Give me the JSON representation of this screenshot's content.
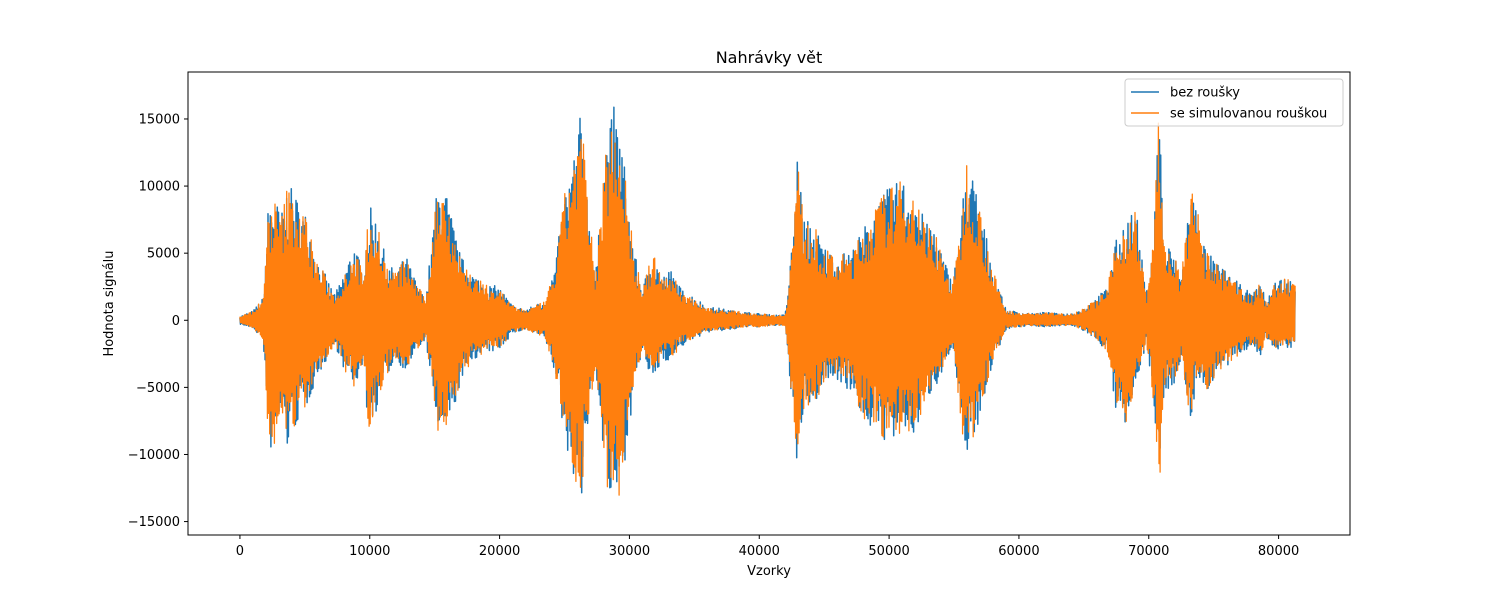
{
  "chart_data": {
    "type": "line",
    "title": "Nahrávky vět",
    "xlabel": "Vzorky",
    "ylabel": "Hodnota signálu",
    "xlim": [
      -4000,
      85500
    ],
    "ylim": [
      -16000,
      18500
    ],
    "xticks": [
      0,
      10000,
      20000,
      30000,
      40000,
      50000,
      60000,
      70000,
      80000
    ],
    "yticks": [
      -15000,
      -10000,
      -5000,
      0,
      5000,
      10000,
      15000
    ],
    "xtick_labels": [
      "0",
      "10000",
      "20000",
      "30000",
      "40000",
      "50000",
      "60000",
      "70000",
      "80000"
    ],
    "ytick_labels": [
      "−15000",
      "−10000",
      "−5000",
      "0",
      "5000",
      "10000",
      "15000"
    ],
    "grid": false,
    "legend_position": "top-right",
    "series": [
      {
        "name": "bez roušky",
        "color": "#1f77b4",
        "x": [
          0,
          1000,
          1800,
          2200,
          2600,
          3200,
          3600,
          4200,
          4700,
          5200,
          5800,
          6400,
          7200,
          7500,
          8100,
          8800,
          9400,
          10000,
          10600,
          11300,
          12000,
          12800,
          13500,
          14300,
          15200,
          15700,
          16300,
          17000,
          18000,
          19000,
          20000,
          21000,
          22000,
          23500,
          24300,
          25000,
          25600,
          26300,
          26800,
          27400,
          28200,
          28800,
          29400,
          29900,
          30400,
          31000,
          31800,
          32500,
          33200,
          34000,
          35000,
          36000,
          37000,
          38000,
          39000,
          40000,
          41000,
          42000,
          42600,
          42900,
          43400,
          44300,
          45200,
          46000,
          47200,
          48000,
          48800,
          49500,
          50200,
          51000,
          52000,
          52800,
          53500,
          54200,
          54900,
          55500,
          56000,
          56700,
          57300,
          58000,
          59000,
          60000,
          61000,
          62000,
          63000,
          64000,
          65000,
          66000,
          66800,
          67500,
          68200,
          69000,
          69800,
          70400,
          70800,
          71200,
          71800,
          72500,
          73200,
          73800,
          74400,
          75000,
          76000,
          77000,
          78000,
          78600,
          79000,
          79800,
          80500,
          81300
        ],
        "values": [
          300,
          700,
          1700,
          9000,
          9500,
          8000,
          10000,
          9700,
          8500,
          7900,
          5000,
          3800,
          2100,
          2300,
          3800,
          5900,
          3800,
          8500,
          7600,
          4200,
          3800,
          4800,
          3100,
          1500,
          10000,
          10500,
          7800,
          4800,
          3500,
          2700,
          2500,
          1100,
          800,
          1500,
          4200,
          9500,
          12000,
          15800,
          9000,
          3500,
          13500,
          16000,
          13800,
          9000,
          5000,
          2400,
          5200,
          3300,
          3800,
          2300,
          1800,
          1000,
          900,
          700,
          600,
          500,
          400,
          400,
          6500,
          13000,
          7800,
          7000,
          5300,
          4800,
          5400,
          6800,
          8600,
          9500,
          10000,
          10600,
          9900,
          7200,
          7200,
          4700,
          2800,
          7200,
          12500,
          9900,
          7200,
          3900,
          800,
          600,
          500,
          600,
          500,
          500,
          900,
          1700,
          2500,
          6000,
          7700,
          8500,
          1900,
          7100,
          17000,
          5700,
          5500,
          3200,
          10000,
          8400,
          5200,
          4600,
          3600,
          2700,
          1900,
          3000,
          1500,
          3000,
          3300,
          2800
        ],
        "neg_values": [
          -300,
          -600,
          -1500,
          -10000,
          -9500,
          -7500,
          -9800,
          -8200,
          -7200,
          -6400,
          -4600,
          -3500,
          -2000,
          -2300,
          -3900,
          -5200,
          -3400,
          -8700,
          -6400,
          -4200,
          -3000,
          -3800,
          -2500,
          -1400,
          -8300,
          -8700,
          -7600,
          -4600,
          -2900,
          -2500,
          -2200,
          -1000,
          -700,
          -1400,
          -4200,
          -9000,
          -11200,
          -13500,
          -8000,
          -3500,
          -12500,
          -14700,
          -12400,
          -8500,
          -5100,
          -2400,
          -5000,
          -3000,
          -3000,
          -2000,
          -1400,
          -900,
          -800,
          -700,
          -500,
          -500,
          -400,
          -400,
          -7000,
          -12700,
          -6800,
          -6200,
          -4600,
          -4400,
          -5500,
          -7400,
          -8300,
          -8900,
          -9300,
          -8600,
          -8700,
          -6000,
          -5200,
          -3500,
          -2100,
          -8000,
          -9800,
          -9000,
          -5800,
          -3200,
          -700,
          -500,
          -400,
          -500,
          -400,
          -400,
          -800,
          -1500,
          -2400,
          -7100,
          -8500,
          -4700,
          -1800,
          -6500,
          -12900,
          -5100,
          -5200,
          -3000,
          -7700,
          -4200,
          -5600,
          -4400,
          -3600,
          -2600,
          -1800,
          -2900,
          -1400,
          -2200,
          -2100,
          -2000
        ]
      },
      {
        "name": "se simulovanou rouškou",
        "color": "#ff7f0e",
        "x": [
          0,
          1000,
          1800,
          2200,
          2600,
          3200,
          3600,
          4200,
          4700,
          5200,
          5800,
          6400,
          7200,
          7500,
          8100,
          8800,
          9400,
          10000,
          10600,
          11300,
          12000,
          12800,
          13500,
          14300,
          15200,
          15700,
          16300,
          17000,
          18000,
          19000,
          20000,
          21000,
          22000,
          23500,
          24300,
          25000,
          25600,
          26300,
          26800,
          27400,
          28200,
          28800,
          29400,
          29900,
          30400,
          31000,
          31800,
          32500,
          33200,
          34000,
          35000,
          36000,
          37000,
          38000,
          39000,
          40000,
          41000,
          42000,
          42600,
          42900,
          43400,
          44300,
          45200,
          46000,
          47200,
          48000,
          48800,
          49500,
          50200,
          51000,
          52000,
          52800,
          53500,
          54200,
          54900,
          55500,
          56000,
          56700,
          57300,
          58000,
          59000,
          60000,
          61000,
          62000,
          63000,
          64000,
          65000,
          66000,
          66800,
          67500,
          68200,
          69000,
          69800,
          70400,
          70800,
          71200,
          71800,
          72500,
          73200,
          73800,
          74400,
          75000,
          76000,
          77000,
          78000,
          78600,
          79000,
          79800,
          80500,
          81300
        ],
        "values": [
          300,
          700,
          1700,
          8700,
          9200,
          7800,
          10000,
          9600,
          8400,
          7700,
          4800,
          3700,
          2000,
          2200,
          3700,
          5700,
          3700,
          8400,
          7500,
          4100,
          3700,
          4700,
          3000,
          1500,
          10000,
          10500,
          7700,
          4700,
          3400,
          2600,
          2400,
          1100,
          800,
          1400,
          4100,
          9400,
          12000,
          15800,
          9000,
          3400,
          13300,
          16000,
          13800,
          8900,
          4900,
          2300,
          5100,
          3200,
          3700,
          2200,
          1700,
          900,
          800,
          700,
          600,
          500,
          400,
          400,
          6400,
          13000,
          7700,
          6900,
          5200,
          4700,
          5300,
          6700,
          8500,
          9400,
          10000,
          10500,
          9800,
          7100,
          7100,
          4600,
          2700,
          7100,
          12400,
          9800,
          7100,
          3800,
          700,
          600,
          500,
          600,
          500,
          500,
          900,
          1600,
          2400,
          5900,
          7600,
          8400,
          1800,
          7000,
          17000,
          5600,
          5400,
          3100,
          10000,
          8300,
          5100,
          4500,
          3500,
          2600,
          1800,
          2900,
          1400,
          2900,
          3200,
          2700
        ],
        "neg_values": [
          -300,
          -600,
          -1400,
          -10200,
          -9400,
          -7400,
          -9700,
          -8100,
          -7100,
          -6300,
          -4500,
          -3400,
          -1900,
          -2200,
          -3800,
          -5100,
          -3300,
          -8700,
          -6300,
          -4100,
          -2900,
          -3700,
          -2400,
          -1300,
          -8200,
          -8600,
          -7500,
          -4500,
          -2800,
          -2400,
          -2100,
          -900,
          -700,
          -1300,
          -4100,
          -8900,
          -11100,
          -13500,
          -7900,
          -3400,
          -12400,
          -14700,
          -12300,
          -8400,
          -5000,
          -2300,
          -4900,
          -2900,
          -2900,
          -1900,
          -1300,
          -800,
          -700,
          -600,
          -500,
          -500,
          -400,
          -400,
          -6900,
          -12700,
          -6700,
          -6100,
          -4500,
          -4300,
          -5400,
          -7300,
          -8200,
          -8800,
          -9200,
          -8500,
          -8600,
          -5900,
          -5100,
          -3400,
          -2000,
          -7900,
          -9700,
          -8900,
          -5700,
          -3100,
          -600,
          -500,
          -400,
          -500,
          -400,
          -400,
          -700,
          -1400,
          -2300,
          -7000,
          -8400,
          -4600,
          -1700,
          -6400,
          -12900,
          -5000,
          -5100,
          -2900,
          -7600,
          -4100,
          -5500,
          -4300,
          -3500,
          -2500,
          -1700,
          -2800,
          -1300,
          -2100,
          -2000,
          -1900
        ]
      }
    ]
  }
}
